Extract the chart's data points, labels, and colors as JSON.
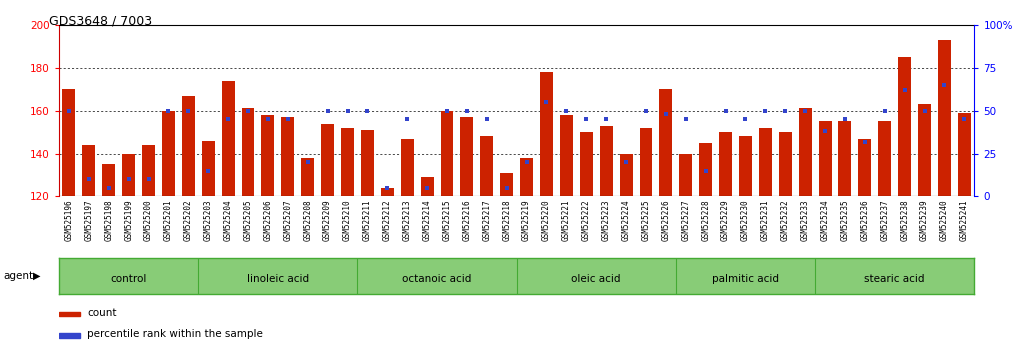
{
  "title": "GDS3648 / 7003",
  "samples": [
    "GSM525196",
    "GSM525197",
    "GSM525198",
    "GSM525199",
    "GSM525200",
    "GSM525201",
    "GSM525202",
    "GSM525203",
    "GSM525204",
    "GSM525205",
    "GSM525206",
    "GSM525207",
    "GSM525208",
    "GSM525209",
    "GSM525210",
    "GSM525211",
    "GSM525212",
    "GSM525213",
    "GSM525214",
    "GSM525215",
    "GSM525216",
    "GSM525217",
    "GSM525218",
    "GSM525219",
    "GSM525220",
    "GSM525221",
    "GSM525222",
    "GSM525223",
    "GSM525224",
    "GSM525225",
    "GSM525226",
    "GSM525227",
    "GSM525228",
    "GSM525229",
    "GSM525230",
    "GSM525231",
    "GSM525232",
    "GSM525233",
    "GSM525234",
    "GSM525235",
    "GSM525236",
    "GSM525237",
    "GSM525238",
    "GSM525239",
    "GSM525240",
    "GSM525241"
  ],
  "counts": [
    170,
    144,
    135,
    140,
    144,
    160,
    167,
    146,
    174,
    161,
    158,
    157,
    138,
    154,
    152,
    151,
    124,
    147,
    129,
    160,
    157,
    148,
    131,
    138,
    178,
    158,
    150,
    153,
    140,
    152,
    170,
    140,
    145,
    150,
    148,
    152,
    150,
    161,
    155,
    155,
    147,
    155,
    185,
    163,
    193,
    159
  ],
  "percentile_ranks": [
    50,
    10,
    5,
    10,
    10,
    50,
    50,
    15,
    45,
    50,
    45,
    45,
    20,
    50,
    50,
    50,
    5,
    45,
    5,
    50,
    50,
    45,
    5,
    20,
    55,
    50,
    45,
    45,
    20,
    50,
    48,
    45,
    15,
    50,
    45,
    50,
    50,
    50,
    38,
    45,
    32,
    50,
    62,
    50,
    65,
    45
  ],
  "groups": [
    {
      "label": "control",
      "start": 0,
      "end": 7
    },
    {
      "label": "linoleic acid",
      "start": 7,
      "end": 15
    },
    {
      "label": "octanoic acid",
      "start": 15,
      "end": 23
    },
    {
      "label": "oleic acid",
      "start": 23,
      "end": 31
    },
    {
      "label": "palmitic acid",
      "start": 31,
      "end": 38
    },
    {
      "label": "stearic acid",
      "start": 38,
      "end": 46
    }
  ],
  "bar_color": "#cc2200",
  "dot_color": "#3344cc",
  "ylim_left": [
    120,
    200
  ],
  "ylim_right": [
    0,
    100
  ],
  "yticks_left": [
    120,
    140,
    160,
    180,
    200
  ],
  "yticks_right": [
    0,
    25,
    50,
    75,
    100
  ],
  "ytick_labels_right": [
    "0",
    "25",
    "50",
    "75",
    "100%"
  ],
  "bg_color": "#ffffff",
  "group_bg_color": "#88cc77",
  "group_border_color": "#44aa33",
  "xtick_bg": "#d4d4d4"
}
